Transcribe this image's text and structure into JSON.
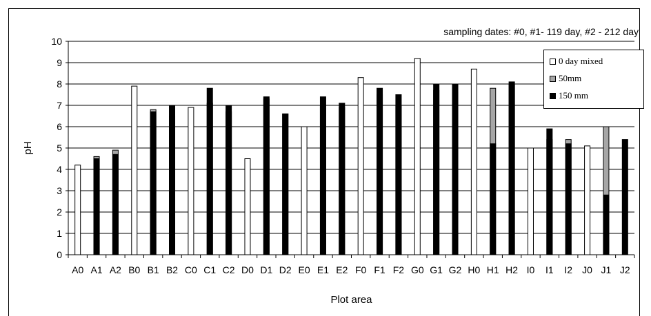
{
  "chart_data": {
    "type": "bar",
    "title": "",
    "note": "sampling dates: #0, #1- 119 day, #2 - 212 day",
    "xlabel": "Plot area",
    "ylabel": "pH",
    "ylim": [
      0,
      10
    ],
    "yticks": [
      "0",
      "1",
      "2",
      "3",
      "4",
      "5",
      "6",
      "7",
      "8",
      "9",
      "10"
    ],
    "grid": true,
    "legend_position": "top-right",
    "categories": [
      "A0",
      "A1",
      "A2",
      "B0",
      "B1",
      "B2",
      "C0",
      "C1",
      "C2",
      "D0",
      "D1",
      "D2",
      "E0",
      "E1",
      "E2",
      "F0",
      "F1",
      "F2",
      "G0",
      "G1",
      "G2",
      "H0",
      "H1",
      "H2",
      "I0",
      "I1",
      "I2",
      "J0",
      "J1",
      "J2"
    ],
    "series": [
      {
        "name": "0 day mixed",
        "color": "#ffffff",
        "values": [
          4.2,
          null,
          null,
          7.9,
          null,
          null,
          6.9,
          null,
          null,
          4.5,
          null,
          null,
          6.0,
          null,
          null,
          8.3,
          null,
          null,
          9.2,
          null,
          null,
          8.7,
          null,
          null,
          5.0,
          null,
          null,
          5.1,
          null,
          null
        ]
      },
      {
        "name": "50mm",
        "color": "#a6a6a6",
        "values": [
          null,
          4.6,
          4.9,
          null,
          6.8,
          6.5,
          null,
          7.1,
          6.7,
          null,
          7.3,
          6.6,
          null,
          7.0,
          6.9,
          null,
          7.5,
          7.0,
          null,
          7.7,
          7.6,
          null,
          7.8,
          8.0,
          null,
          5.4,
          5.4,
          null,
          6.0,
          null
        ]
      },
      {
        "name": "150 mm",
        "color": "#000000",
        "values": [
          null,
          4.5,
          4.7,
          null,
          6.7,
          7.0,
          null,
          7.8,
          7.0,
          null,
          7.4,
          6.6,
          null,
          7.4,
          7.1,
          null,
          7.8,
          7.5,
          null,
          8.0,
          8.0,
          null,
          5.2,
          8.1,
          null,
          5.9,
          5.2,
          null,
          2.8,
          5.4
        ]
      }
    ]
  }
}
